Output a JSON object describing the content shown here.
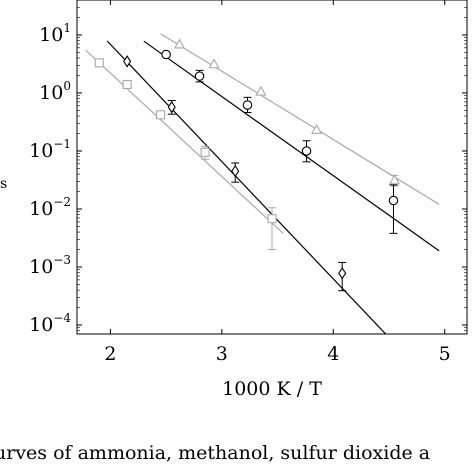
{
  "chart_data": {
    "type": "scatter",
    "title": "",
    "xlabel": "1000 K / T",
    "ylabel_fragment": "s",
    "yscale": "log",
    "xlim": [
      1.7,
      5.2
    ],
    "ylim": [
      7e-05,
      40
    ],
    "x_ticks": [
      2,
      3,
      4,
      5
    ],
    "x_tick_labels": [
      "2",
      "3",
      "4",
      "5"
    ],
    "y_ticks": [
      0.0001,
      0.001,
      0.01,
      0.1,
      1,
      10
    ],
    "y_tick_labels": [
      {
        "base": "10",
        "exp": "−4"
      },
      {
        "base": "10",
        "exp": "−3"
      },
      {
        "base": "10",
        "exp": "−2"
      },
      {
        "base": "10",
        "exp": "−1"
      },
      {
        "base": "10",
        "exp": "0"
      },
      {
        "base": "10",
        "exp": "1"
      }
    ],
    "grid": false,
    "series": [
      {
        "marker": "triangle",
        "color": "#a8a8a8",
        "points": [
          {
            "x": 2.62,
            "y": 6.8,
            "ylo": 6.8,
            "yhi": 6.8
          },
          {
            "x": 2.93,
            "y": 3.1,
            "ylo": 3.1,
            "yhi": 3.1
          },
          {
            "x": 3.35,
            "y": 1.05,
            "ylo": 1.05,
            "yhi": 1.05
          },
          {
            "x": 3.85,
            "y": 0.23,
            "ylo": 0.23,
            "yhi": 0.23
          },
          {
            "x": 4.55,
            "y": 0.031,
            "ylo": 0.025,
            "yhi": 0.038
          }
        ],
        "fit": {
          "x": [
            2.45,
            4.95
          ],
          "y": [
            10.5,
            0.012
          ]
        }
      },
      {
        "marker": "circle",
        "color": "#000000",
        "points": [
          {
            "x": 2.5,
            "y": 4.6,
            "ylo": 4.6,
            "yhi": 4.6
          },
          {
            "x": 2.8,
            "y": 1.95,
            "ylo": 1.55,
            "yhi": 2.45
          },
          {
            "x": 3.23,
            "y": 0.62,
            "ylo": 0.46,
            "yhi": 0.84
          },
          {
            "x": 3.76,
            "y": 0.1,
            "ylo": 0.065,
            "yhi": 0.15
          },
          {
            "x": 4.54,
            "y": 0.014,
            "ylo": 0.0038,
            "yhi": 0.026
          }
        ],
        "fit": {
          "x": [
            2.3,
            4.95
          ],
          "y": [
            7.8,
            0.0019
          ]
        }
      },
      {
        "marker": "diamond",
        "color": "#000000",
        "points": [
          {
            "x": 2.15,
            "y": 3.5,
            "ylo": 3.5,
            "yhi": 3.5
          },
          {
            "x": 2.55,
            "y": 0.57,
            "ylo": 0.43,
            "yhi": 0.74
          },
          {
            "x": 3.12,
            "y": 0.045,
            "ylo": 0.029,
            "yhi": 0.062
          },
          {
            "x": 4.08,
            "y": 0.00078,
            "ylo": 0.00039,
            "yhi": 0.0012
          }
        ],
        "fit": {
          "x": [
            1.97,
            4.47
          ],
          "y": [
            7.9,
            7e-05
          ]
        }
      },
      {
        "marker": "square",
        "color": "#a8a8a8",
        "points": [
          {
            "x": 1.9,
            "y": 3.3,
            "ylo": 3.3,
            "yhi": 3.3
          },
          {
            "x": 2.15,
            "y": 1.4,
            "ylo": 1.4,
            "yhi": 1.4
          },
          {
            "x": 2.45,
            "y": 0.42,
            "ylo": 0.42,
            "yhi": 0.42
          },
          {
            "x": 2.85,
            "y": 0.095,
            "ylo": 0.072,
            "yhi": 0.12
          },
          {
            "x": 3.45,
            "y": 0.0068,
            "ylo": 0.002,
            "yhi": 0.0105
          }
        ],
        "fit": {
          "x": [
            1.78,
            3.55
          ],
          "y": [
            5.4,
            0.0038
          ]
        }
      }
    ]
  },
  "caption": "urves of ammonia, methanol, sulfur dioxide a"
}
